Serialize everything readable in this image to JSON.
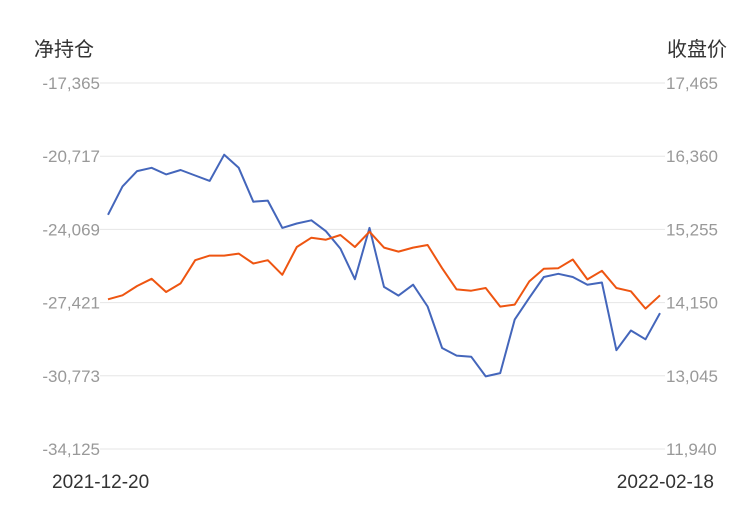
{
  "chart_data": {
    "type": "line",
    "left_axis_title": "净持仓",
    "right_axis_title": "收盘价",
    "left_ticks": [
      "-17,365",
      "-20,717",
      "-24,069",
      "-27,421",
      "-30,773",
      "-34,125"
    ],
    "right_ticks": [
      "17,465",
      "16,360",
      "15,255",
      "14,150",
      "13,045",
      "11,940"
    ],
    "left_range": [
      -34125,
      -17365
    ],
    "right_range": [
      11940,
      17465
    ],
    "x_labels": [
      "2021-12-20",
      "2022-02-18"
    ],
    "grid": true,
    "series": [
      {
        "axis": "left",
        "color": "#4466bb",
        "values": [
          -23400,
          -22100,
          -21400,
          -21250,
          -21550,
          -21350,
          -21600,
          -21850,
          -20650,
          -21250,
          -22800,
          -22750,
          -24000,
          -23800,
          -23650,
          -24150,
          -24950,
          -26350,
          -24000,
          -26700,
          -27100,
          -26600,
          -27600,
          -29500,
          -29850,
          -29900,
          -30800,
          -30650,
          -28200,
          -27200,
          -26250,
          -26100,
          -26250,
          -26600,
          -26500,
          -29600,
          -28700,
          -29100,
          -27900
        ]
      },
      {
        "axis": "right",
        "color": "#ee5511",
        "values": [
          14200,
          14260,
          14400,
          14510,
          14310,
          14440,
          14790,
          14860,
          14860,
          14890,
          14740,
          14790,
          14570,
          14990,
          15130,
          15100,
          15170,
          14990,
          15220,
          14980,
          14920,
          14980,
          15020,
          14670,
          14350,
          14330,
          14370,
          14090,
          14120,
          14470,
          14660,
          14670,
          14800,
          14500,
          14630,
          14370,
          14320,
          14060,
          14260
        ]
      }
    ]
  }
}
